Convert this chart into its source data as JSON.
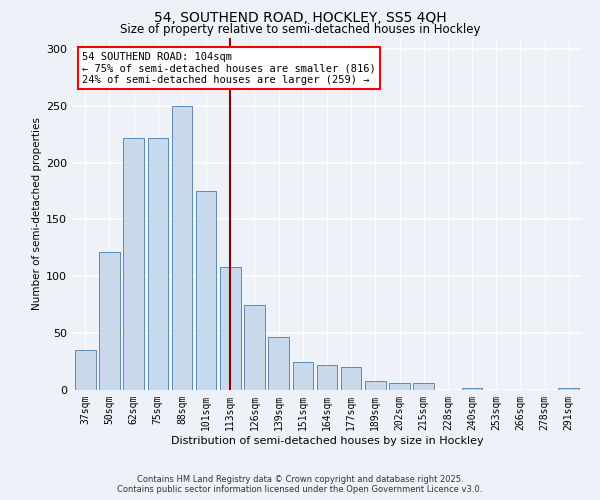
{
  "title1": "54, SOUTHEND ROAD, HOCKLEY, SS5 4QH",
  "title2": "Size of property relative to semi-detached houses in Hockley",
  "xlabel": "Distribution of semi-detached houses by size in Hockley",
  "ylabel": "Number of semi-detached properties",
  "categories": [
    "37sqm",
    "50sqm",
    "62sqm",
    "75sqm",
    "88sqm",
    "101sqm",
    "113sqm",
    "126sqm",
    "139sqm",
    "151sqm",
    "164sqm",
    "177sqm",
    "189sqm",
    "202sqm",
    "215sqm",
    "228sqm",
    "240sqm",
    "253sqm",
    "266sqm",
    "278sqm",
    "291sqm"
  ],
  "bar_values": [
    35,
    121,
    222,
    222,
    250,
    175,
    108,
    75,
    47,
    25,
    22,
    20,
    8,
    6,
    6,
    0,
    2,
    0,
    0,
    0,
    2
  ],
  "bar_color": "#c9d9ec",
  "bar_edge_color": "#5a8ab0",
  "vline_x": 6.0,
  "vline_color": "#8b0000",
  "annotation_title": "54 SOUTHEND ROAD: 104sqm",
  "annotation_line1": "← 75% of semi-detached houses are smaller (816)",
  "annotation_line2": "24% of semi-detached houses are larger (259) →",
  "annotation_box_color": "white",
  "annotation_box_edge_color": "red",
  "ylim": [
    0,
    310
  ],
  "yticks": [
    0,
    50,
    100,
    150,
    200,
    250,
    300
  ],
  "footnote1": "Contains HM Land Registry data © Crown copyright and database right 2025.",
  "footnote2": "Contains public sector information licensed under the Open Government Licence v3.0.",
  "bg_color": "#eef2f8",
  "plot_bg_color": "#eef2f8",
  "grid_color": "#ffffff",
  "title1_fontsize": 10,
  "title2_fontsize": 8.5,
  "ylabel_fontsize": 7.5,
  "xlabel_fontsize": 8,
  "ytick_fontsize": 8,
  "xtick_fontsize": 7
}
